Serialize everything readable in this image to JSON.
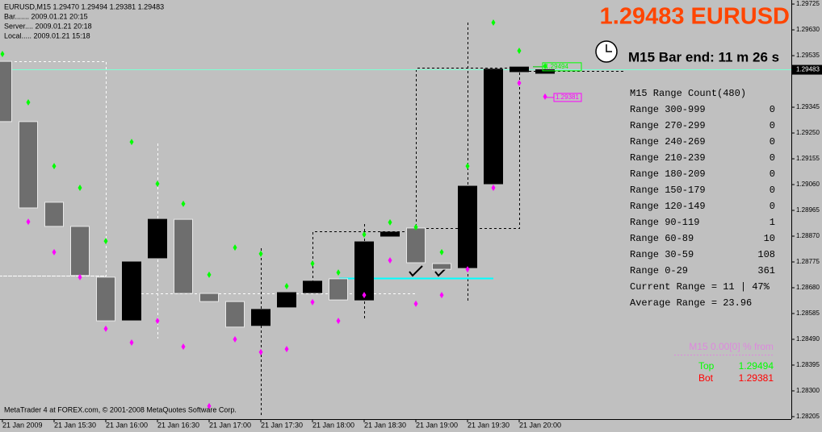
{
  "header": "EURUSD,M15  1.29470 1.29494 1.29381 1.29483",
  "info_lines": [
    "Bar....... 2009.01.21 20:15",
    "Server.... 2009.01.21 20:18",
    "Local..... 2009.01.21 15:18"
  ],
  "big_title": "1.29483 EURUSD",
  "bar_end": "M15 Bar end: 11 m 26 s",
  "range_panel": {
    "title": "M15 Range Count(480)",
    "rows": [
      [
        "Range 300-999",
        0
      ],
      [
        "Range 270-299",
        0
      ],
      [
        "Range 240-269",
        0
      ],
      [
        "Range 210-239",
        0
      ],
      [
        "Range 180-209",
        0
      ],
      [
        "Range 150-179",
        0
      ],
      [
        "Range 120-149",
        0
      ],
      [
        "Range 90-119",
        1
      ],
      [
        "Range 60-89",
        10
      ],
      [
        "Range 30-59",
        108
      ],
      [
        "Range 0-29",
        361
      ]
    ],
    "current": "Current Range = 11 | 47%",
    "average": "Average Range = 23.96"
  },
  "from_label": "M15 0.00[0] % from",
  "top": {
    "label": "Top",
    "value": "1.29494"
  },
  "bot": {
    "label": "Bot",
    "value": "1.29381"
  },
  "footer": "MetaTrader 4 at FOREX.com, © 2001-2008 MetaQuotes Software Corp.",
  "chart_data": {
    "type": "candlestick",
    "categories": [
      "21 Jan 2009",
      null,
      "21 Jan 15:30",
      null,
      "21 Jan 16:00",
      null,
      "21 Jan 16:30",
      null,
      "21 Jan 17:00",
      null,
      "21 Jan 17:30",
      null,
      "21 Jan 18:00",
      null,
      "21 Jan 18:30",
      null,
      "21 Jan 19:00",
      null,
      "21 Jan 19:30",
      null,
      "21 Jan 20:00",
      null
    ],
    "open": [
      1.29514,
      1.29292,
      1.28995,
      1.28906,
      1.28719,
      1.28561,
      1.2879,
      1.28932,
      1.28659,
      1.28629,
      1.28541,
      1.28609,
      1.28662,
      1.28713,
      1.28635,
      1.2887,
      1.289,
      1.28769,
      1.28754,
      1.29063,
      1.29476,
      1.2947
    ],
    "close": [
      1.29292,
      1.28974,
      1.28906,
      1.28725,
      1.28558,
      1.28775,
      1.28932,
      1.28659,
      1.28629,
      1.28535,
      1.286,
      1.28662,
      1.28704,
      1.28635,
      1.28849,
      1.28885,
      1.28772,
      1.28748,
      1.29054,
      1.29485,
      1.29493,
      1.29483
    ],
    "bull_color": "#000000",
    "bear_color": "#6e6e6e",
    "up_markers": {
      "color": "#00ff00",
      "values": [
        1.29541,
        1.29363,
        1.29128,
        1.29048,
        1.28852,
        1.29217,
        1.29063,
        1.28989,
        1.28728,
        1.28828,
        1.28805,
        1.28686,
        1.28769,
        1.28736,
        1.28876,
        1.28921,
        1.28903,
        1.28811,
        1.29128,
        1.29657,
        1.29553,
        1.29496
      ]
    },
    "down_markers": {
      "color": "#ff00ff",
      "values": [
        null,
        1.28923,
        1.28811,
        1.28719,
        1.28529,
        1.28478,
        1.28558,
        1.28463,
        1.28244,
        1.2849,
        1.28443,
        1.28454,
        1.28627,
        1.28558,
        1.28653,
        1.28781,
        1.28621,
        1.28653,
        1.28748,
        1.29048,
        1.29434,
        1.29384
      ]
    },
    "current_price": 1.29483,
    "top_price": 1.29494,
    "bot_price": 1.29381,
    "ylim": [
      1.28196,
      1.2974
    ],
    "yticks": [
      1.29725,
      {
        "value": 1.2963,
        "label": "1.29630"
      },
      1.29535,
      1.29345,
      {
        "value": 1.2925,
        "label": "1.29250"
      },
      1.29155,
      {
        "value": 1.2906,
        "label": "1.29060"
      },
      1.28965,
      {
        "value": 1.2887,
        "label": "1.28870"
      },
      1.28775,
      {
        "value": 1.2868,
        "label": "1.28680"
      },
      1.28585,
      {
        "value": 1.2849,
        "label": "1.28490"
      },
      1.28395,
      {
        "value": 1.283,
        "label": "1.28300"
      },
      1.28205
    ]
  }
}
